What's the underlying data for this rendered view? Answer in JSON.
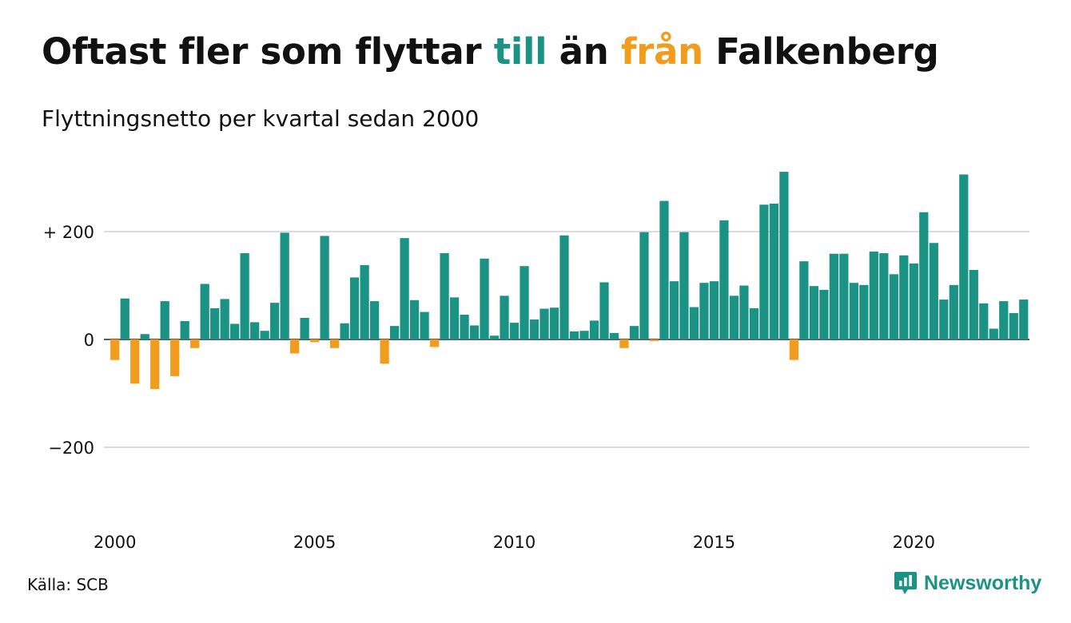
{
  "title": {
    "part1": "Oftast fler som flyttar ",
    "till": "till",
    "part2": " än ",
    "fran": "från",
    "part3": " Falkenberg"
  },
  "subtitle": "Flyttningsnetto per kvartal sedan 2000",
  "source": "Källa: SCB",
  "brand": "Newsworthy",
  "colors": {
    "positive": "#1a9385",
    "negative": "#f29c1e",
    "grid": "#dcdcdc",
    "zero_line": "#222222"
  },
  "chart_data": {
    "type": "bar",
    "x_start": "2000 Q1",
    "x_tick_labels": [
      "2000",
      "2005",
      "2010",
      "2015",
      "2020"
    ],
    "y_tick_labels": [
      "+ 200",
      "0",
      "−200"
    ],
    "y_ticks": [
      200,
      0,
      -200
    ],
    "ylim": [
      -340,
      320
    ],
    "grid": true,
    "legend": "none",
    "values": [
      -38,
      76,
      -82,
      10,
      -92,
      71,
      -68,
      34,
      -16,
      103,
      58,
      75,
      29,
      160,
      32,
      16,
      68,
      198,
      -26,
      40,
      -5,
      192,
      -16,
      30,
      115,
      138,
      71,
      -45,
      25,
      188,
      73,
      51,
      -14,
      160,
      78,
      46,
      26,
      150,
      7,
      81,
      31,
      136,
      37,
      57,
      59,
      193,
      15,
      16,
      35,
      106,
      12,
      -16,
      25,
      199,
      -3,
      257,
      108,
      199,
      60,
      105,
      108,
      221,
      81,
      100,
      58,
      250,
      252,
      311,
      -38,
      145,
      99,
      92,
      159,
      159,
      105,
      101,
      163,
      160,
      121,
      156,
      141,
      236,
      179,
      74,
      101,
      306,
      129,
      67,
      20,
      71,
      49,
      74
    ]
  }
}
